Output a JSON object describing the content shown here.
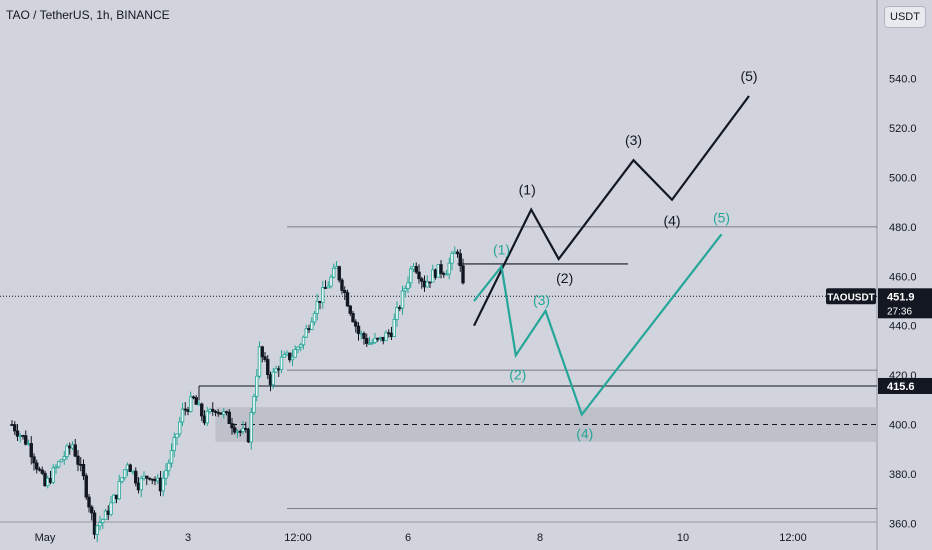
{
  "chart_title": "TAO / TetherUS, 1h, BINANCE",
  "currency_button": "USDT",
  "colors": {
    "background": "#d1d4dc",
    "candle_up": "#26a69a",
    "candle_down": "#131722",
    "wave_black": "#131722",
    "wave_green": "#26a69a",
    "zone": "#b9bcc4"
  },
  "chart_data": {
    "type": "candlestick",
    "y_axis": {
      "min": 350,
      "max": 550,
      "ticks": [
        "540.0",
        "520.0",
        "500.0",
        "480.0",
        "460.0",
        "440.0",
        "420.0",
        "400.0",
        "380.0",
        "360.0"
      ],
      "tick_values": [
        540,
        520,
        500,
        480,
        460,
        440,
        420,
        400,
        380,
        360
      ]
    },
    "x_axis": {
      "ticks": [
        "May",
        "3",
        "12:00",
        "6",
        "8",
        "10",
        "12:00"
      ],
      "tick_values": [
        0.3,
        1.6,
        2.6,
        3.6,
        4.8,
        6.1,
        7.1
      ]
    },
    "price_path": [
      [
        0.0,
        400
      ],
      [
        0.15,
        392
      ],
      [
        0.3,
        375
      ],
      [
        0.45,
        386
      ],
      [
        0.55,
        392
      ],
      [
        0.65,
        378
      ],
      [
        0.75,
        358
      ],
      [
        0.85,
        363
      ],
      [
        0.95,
        372
      ],
      [
        1.05,
        385
      ],
      [
        1.15,
        376
      ],
      [
        1.25,
        380
      ],
      [
        1.35,
        375
      ],
      [
        1.45,
        388
      ],
      [
        1.55,
        405
      ],
      [
        1.65,
        410
      ],
      [
        1.75,
        402
      ],
      [
        1.85,
        407
      ],
      [
        1.95,
        403
      ],
      [
        2.05,
        398
      ],
      [
        2.15,
        395
      ],
      [
        2.25,
        430
      ],
      [
        2.35,
        418
      ],
      [
        2.45,
        426
      ],
      [
        2.55,
        428
      ],
      [
        2.65,
        435
      ],
      [
        2.75,
        447
      ],
      [
        2.85,
        455
      ],
      [
        2.95,
        463
      ],
      [
        3.05,
        450
      ],
      [
        3.15,
        437
      ],
      [
        3.25,
        433
      ],
      [
        3.35,
        434
      ],
      [
        3.45,
        438
      ],
      [
        3.55,
        452
      ],
      [
        3.65,
        466
      ],
      [
        3.75,
        457
      ],
      [
        3.85,
        462
      ],
      [
        3.95,
        463
      ],
      [
        4.05,
        471
      ],
      [
        4.1,
        455
      ],
      [
        4.12,
        448
      ]
    ],
    "current_price": {
      "label": "TAOUSDT",
      "value": "451.9",
      "countdown": "27:36",
      "y": 451.9
    },
    "level_marker": {
      "value": "415.6",
      "y": 415.6
    },
    "horizontal_lines": [
      {
        "y": 480,
        "x_start": 2.5,
        "x_end": 8.0
      },
      {
        "y": 465,
        "x_start": 4.05,
        "x_end": 5.6
      },
      {
        "y": 422,
        "x_start": 2.5,
        "x_end": 8.0
      },
      {
        "y": 366,
        "x_start": 2.5,
        "x_end": 8.0
      }
    ],
    "support_zone": {
      "y_low": 393,
      "y_high": 407,
      "x_start": 1.85
    },
    "dashed_level": {
      "y": 400,
      "x_start": 2.0
    },
    "wave_black": {
      "points": [
        [
          4.2,
          440
        ],
        [
          4.72,
          487
        ],
        [
          4.97,
          467
        ],
        [
          5.65,
          507
        ],
        [
          6.0,
          491
        ],
        [
          6.7,
          533
        ]
      ],
      "labels": [
        "(1)",
        "(2)",
        "(3)",
        "(4)",
        "(5)"
      ]
    },
    "wave_green": {
      "points": [
        [
          4.2,
          450
        ],
        [
          4.45,
          464
        ],
        [
          4.58,
          428
        ],
        [
          4.85,
          446
        ],
        [
          5.18,
          404
        ],
        [
          6.45,
          477
        ]
      ],
      "labels": [
        "(1)",
        "(2)",
        "(3)",
        "(4)",
        "(5)"
      ]
    }
  }
}
